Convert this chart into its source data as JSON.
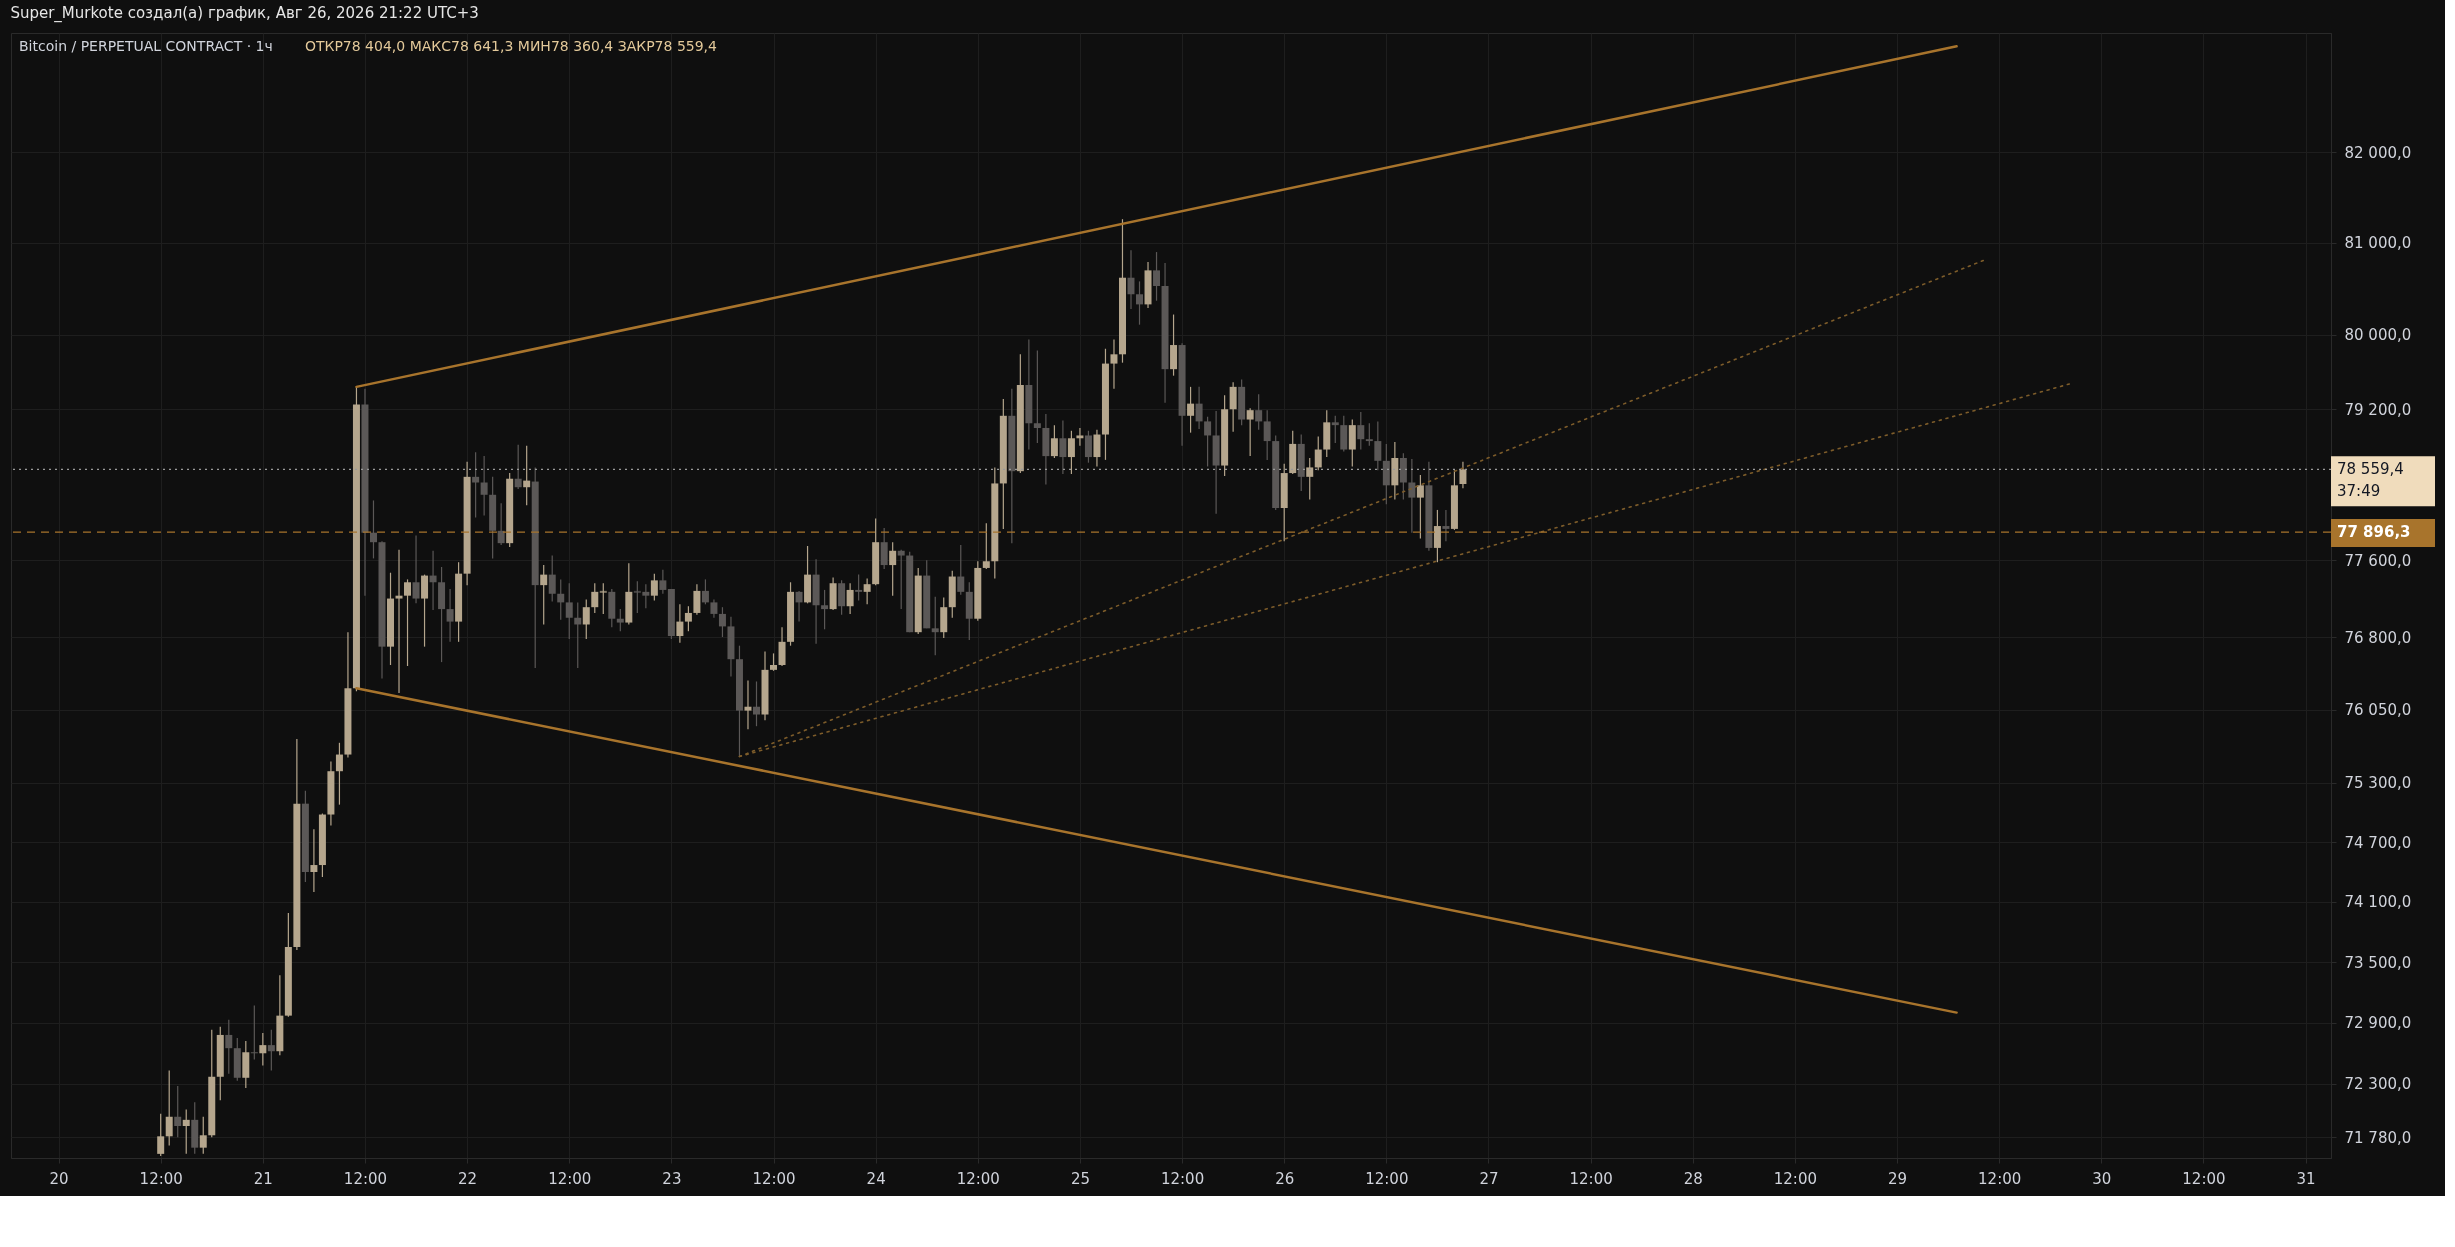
{
  "chart_data": {
    "type": "candlestick",
    "title": "Super_Murkote создал(а) график, Авг 26, 2026 21:22 UTC+3",
    "subtitle": "Bitcoin / PERPETUAL CONTRACT · 1ч",
    "annotations": [
      "ОТКР78 404,0  МАКС78 641,3  МИН78 360,4  ЗАКР78 559,4"
    ],
    "x": [
      "2026-08-20T12:00",
      "2026-08-20T13:00",
      "2026-08-20T14:00",
      "2026-08-20T15:00",
      "2026-08-20T16:00",
      "2026-08-20T17:00",
      "2026-08-20T18:00",
      "2026-08-20T19:00",
      "2026-08-20T20:00",
      "2026-08-20T21:00",
      "2026-08-20T22:00",
      "2026-08-20T23:00",
      "2026-08-21T00:00",
      "2026-08-21T01:00",
      "2026-08-21T02:00",
      "2026-08-21T03:00",
      "2026-08-21T04:00",
      "2026-08-21T05:00",
      "2026-08-21T06:00",
      "2026-08-21T07:00",
      "2026-08-21T08:00",
      "2026-08-21T09:00",
      "2026-08-21T10:00",
      "2026-08-21T11:00",
      "2026-08-21T12:00",
      "2026-08-21T13:00",
      "2026-08-21T14:00",
      "2026-08-21T15:00",
      "2026-08-21T16:00",
      "2026-08-21T17:00",
      "2026-08-21T18:00",
      "2026-08-21T19:00",
      "2026-08-21T20:00",
      "2026-08-21T21:00",
      "2026-08-21T22:00",
      "2026-08-21T23:00",
      "2026-08-22T00:00",
      "2026-08-22T01:00",
      "2026-08-22T02:00",
      "2026-08-22T03:00",
      "2026-08-22T04:00",
      "2026-08-22T05:00",
      "2026-08-22T06:00",
      "2026-08-22T07:00",
      "2026-08-22T08:00",
      "2026-08-22T09:00",
      "2026-08-22T10:00",
      "2026-08-22T11:00",
      "2026-08-22T12:00",
      "2026-08-22T13:00",
      "2026-08-22T14:00",
      "2026-08-22T15:00",
      "2026-08-22T16:00",
      "2026-08-22T17:00",
      "2026-08-22T18:00",
      "2026-08-22T19:00",
      "2026-08-22T20:00",
      "2026-08-22T21:00",
      "2026-08-22T22:00",
      "2026-08-22T23:00",
      "2026-08-23T00:00",
      "2026-08-23T01:00",
      "2026-08-23T02:00",
      "2026-08-23T03:00",
      "2026-08-23T04:00",
      "2026-08-23T05:00",
      "2026-08-23T06:00",
      "2026-08-23T07:00",
      "2026-08-23T08:00",
      "2026-08-23T09:00",
      "2026-08-23T10:00",
      "2026-08-23T11:00",
      "2026-08-23T12:00",
      "2026-08-23T13:00",
      "2026-08-23T14:00",
      "2026-08-23T15:00",
      "2026-08-23T16:00",
      "2026-08-23T17:00",
      "2026-08-23T18:00",
      "2026-08-23T19:00",
      "2026-08-23T20:00",
      "2026-08-23T21:00",
      "2026-08-23T22:00",
      "2026-08-23T23:00",
      "2026-08-24T00:00",
      "2026-08-24T01:00",
      "2026-08-24T02:00",
      "2026-08-24T03:00",
      "2026-08-24T04:00",
      "2026-08-24T05:00",
      "2026-08-24T06:00",
      "2026-08-24T07:00",
      "2026-08-24T08:00",
      "2026-08-24T09:00",
      "2026-08-24T10:00",
      "2026-08-24T11:00",
      "2026-08-24T12:00",
      "2026-08-24T13:00",
      "2026-08-24T14:00",
      "2026-08-24T15:00",
      "2026-08-24T16:00",
      "2026-08-24T17:00",
      "2026-08-24T18:00",
      "2026-08-24T19:00",
      "2026-08-24T20:00",
      "2026-08-24T21:00",
      "2026-08-24T22:00",
      "2026-08-24T23:00",
      "2026-08-25T00:00",
      "2026-08-25T01:00",
      "2026-08-25T02:00",
      "2026-08-25T03:00",
      "2026-08-25T04:00",
      "2026-08-25T05:00",
      "2026-08-25T06:00",
      "2026-08-25T07:00",
      "2026-08-25T08:00",
      "2026-08-25T09:00",
      "2026-08-25T10:00",
      "2026-08-25T11:00",
      "2026-08-25T12:00",
      "2026-08-25T13:00",
      "2026-08-25T14:00",
      "2026-08-25T15:00",
      "2026-08-25T16:00",
      "2026-08-25T17:00",
      "2026-08-25T18:00",
      "2026-08-25T19:00",
      "2026-08-25T20:00",
      "2026-08-25T21:00",
      "2026-08-25T22:00",
      "2026-08-25T23:00",
      "2026-08-26T00:00",
      "2026-08-26T01:00",
      "2026-08-26T02:00",
      "2026-08-26T03:00",
      "2026-08-26T04:00",
      "2026-08-26T05:00",
      "2026-08-26T06:00",
      "2026-08-26T07:00",
      "2026-08-26T08:00",
      "2026-08-26T09:00",
      "2026-08-26T10:00",
      "2026-08-26T11:00",
      "2026-08-26T12:00",
      "2026-08-26T13:00",
      "2026-08-26T14:00",
      "2026-08-26T15:00",
      "2026-08-26T16:00",
      "2026-08-26T17:00",
      "2026-08-26T18:00",
      "2026-08-26T19:00",
      "2026-08-26T20:00",
      "2026-08-26T21:00"
    ],
    "ohlc": [
      [
        71620,
        72010,
        71600,
        71790
      ],
      [
        71790,
        72430,
        71700,
        71980
      ],
      [
        71980,
        72280,
        71780,
        71890
      ],
      [
        71890,
        72050,
        71620,
        71950
      ],
      [
        71950,
        72120,
        71620,
        71680
      ],
      [
        71680,
        71980,
        71620,
        71800
      ],
      [
        71800,
        72830,
        71780,
        72370
      ],
      [
        72370,
        72860,
        72140,
        72780
      ],
      [
        72780,
        72930,
        72400,
        72650
      ],
      [
        72650,
        72750,
        72330,
        72360
      ],
      [
        72360,
        72720,
        72260,
        72610
      ],
      [
        72610,
        73070,
        72540,
        72600
      ],
      [
        72600,
        72800,
        72480,
        72680
      ],
      [
        72680,
        72830,
        72430,
        72620
      ],
      [
        72620,
        73370,
        72580,
        72970
      ],
      [
        72970,
        73990,
        72960,
        73650
      ],
      [
        73650,
        75750,
        73620,
        75090
      ],
      [
        75090,
        75220,
        74300,
        74400
      ],
      [
        74400,
        74830,
        74200,
        74470
      ],
      [
        74470,
        74990,
        74350,
        74980
      ],
      [
        74980,
        75520,
        74870,
        75420
      ],
      [
        75420,
        75710,
        75080,
        75590
      ],
      [
        75590,
        76850,
        75560,
        76270
      ],
      [
        76270,
        79440,
        76240,
        79250
      ],
      [
        79250,
        79420,
        77230,
        77890
      ],
      [
        77890,
        78230,
        77620,
        77790
      ],
      [
        77790,
        77800,
        76370,
        76700
      ],
      [
        76700,
        77470,
        76510,
        77200
      ],
      [
        77200,
        77710,
        76220,
        77230
      ],
      [
        77230,
        77400,
        76500,
        77370
      ],
      [
        77370,
        77860,
        77150,
        77200
      ],
      [
        77200,
        77450,
        76700,
        77440
      ],
      [
        77440,
        77700,
        77080,
        77370
      ],
      [
        77370,
        77530,
        76540,
        77090
      ],
      [
        77090,
        77300,
        76750,
        76960
      ],
      [
        76960,
        77580,
        76750,
        77460
      ],
      [
        77460,
        78640,
        77340,
        78480
      ],
      [
        78480,
        78740,
        78050,
        78420
      ],
      [
        78420,
        78700,
        78070,
        78290
      ],
      [
        78290,
        78480,
        77620,
        77910
      ],
      [
        77910,
        78200,
        77760,
        77780
      ],
      [
        77780,
        78520,
        77740,
        78460
      ],
      [
        78460,
        78820,
        78350,
        78370
      ],
      [
        78370,
        78810,
        78180,
        78440
      ],
      [
        78430,
        78580,
        76480,
        77340
      ],
      [
        77340,
        77550,
        76930,
        77450
      ],
      [
        77450,
        77650,
        77170,
        77250
      ],
      [
        77250,
        77400,
        76980,
        77160
      ],
      [
        77160,
        77360,
        76780,
        77000
      ],
      [
        77000,
        77160,
        76480,
        76930
      ],
      [
        76930,
        77190,
        76780,
        77110
      ],
      [
        77110,
        77360,
        77050,
        77270
      ],
      [
        77270,
        77360,
        77040,
        77270
      ],
      [
        77270,
        77300,
        76900,
        76990
      ],
      [
        76990,
        77090,
        76860,
        76950
      ],
      [
        76950,
        77570,
        76930,
        77270
      ],
      [
        77270,
        77380,
        77050,
        77270
      ],
      [
        77270,
        77350,
        77100,
        77230
      ],
      [
        77230,
        77460,
        77180,
        77390
      ],
      [
        77390,
        77500,
        77250,
        77290
      ],
      [
        77300,
        77300,
        76780,
        76810
      ],
      [
        76810,
        77140,
        76740,
        76960
      ],
      [
        76960,
        77120,
        76860,
        77050
      ],
      [
        77050,
        77350,
        77030,
        77280
      ],
      [
        77280,
        77400,
        77140,
        77160
      ],
      [
        77160,
        77190,
        77000,
        77040
      ],
      [
        77040,
        77110,
        76800,
        76910
      ],
      [
        76910,
        77010,
        76390,
        76570
      ],
      [
        76570,
        76710,
        75570,
        76040
      ],
      [
        76040,
        76350,
        75850,
        76080
      ],
      [
        76080,
        76340,
        75880,
        76000
      ],
      [
        76000,
        76650,
        75940,
        76460
      ],
      [
        76460,
        76630,
        76450,
        76510
      ],
      [
        76510,
        76900,
        76500,
        76750
      ],
      [
        76750,
        77370,
        76710,
        77270
      ],
      [
        77270,
        77280,
        76960,
        77160
      ],
      [
        77160,
        77750,
        77150,
        77450
      ],
      [
        77450,
        77610,
        76730,
        77130
      ],
      [
        77130,
        77290,
        76880,
        77090
      ],
      [
        77090,
        77420,
        77080,
        77360
      ],
      [
        77360,
        77390,
        77030,
        77120
      ],
      [
        77120,
        77360,
        77040,
        77290
      ],
      [
        77290,
        77450,
        77180,
        77270
      ],
      [
        77270,
        77410,
        77140,
        77350
      ],
      [
        77350,
        78040,
        77340,
        77790
      ],
      [
        77790,
        77940,
        77510,
        77550
      ],
      [
        77550,
        77790,
        77230,
        77700
      ],
      [
        77700,
        77710,
        77090,
        77650
      ],
      [
        77650,
        77690,
        76850,
        76850
      ],
      [
        76850,
        77520,
        76830,
        77440
      ],
      [
        77440,
        77600,
        76890,
        76890
      ],
      [
        76890,
        77220,
        76610,
        76850
      ],
      [
        76850,
        77210,
        76790,
        77110
      ],
      [
        77110,
        77490,
        77000,
        77430
      ],
      [
        77430,
        77760,
        77240,
        77270
      ],
      [
        77270,
        77370,
        76770,
        76990
      ],
      [
        76990,
        77590,
        76970,
        77520
      ],
      [
        77520,
        77990,
        77510,
        77590
      ],
      [
        77590,
        78580,
        77410,
        78410
      ],
      [
        78410,
        79310,
        77930,
        79130
      ],
      [
        79130,
        79420,
        77780,
        78540
      ],
      [
        78540,
        79790,
        78520,
        79460
      ],
      [
        79460,
        79950,
        78770,
        79050
      ],
      [
        79050,
        79830,
        78840,
        79000
      ],
      [
        79000,
        79150,
        78400,
        78700
      ],
      [
        78700,
        79030,
        78680,
        78890
      ],
      [
        78890,
        79080,
        78510,
        78690
      ],
      [
        78690,
        78970,
        78510,
        78890
      ],
      [
        78890,
        79000,
        78810,
        78920
      ],
      [
        78920,
        78970,
        78630,
        78690
      ],
      [
        78690,
        78980,
        78590,
        78930
      ],
      [
        78930,
        79850,
        78660,
        79690
      ],
      [
        79690,
        79950,
        79420,
        79790
      ],
      [
        79790,
        81260,
        79700,
        80620
      ],
      [
        80620,
        80920,
        80280,
        80440
      ],
      [
        80440,
        80580,
        80110,
        80330
      ],
      [
        80330,
        80790,
        80290,
        80700
      ],
      [
        80700,
        80900,
        80370,
        80530
      ],
      [
        80530,
        80780,
        79270,
        79630
      ],
      [
        79630,
        80220,
        79560,
        79890
      ],
      [
        79890,
        79910,
        78810,
        79130
      ],
      [
        79130,
        79440,
        78950,
        79260
      ],
      [
        79260,
        79440,
        78990,
        79070
      ],
      [
        79070,
        79120,
        78590,
        78920
      ],
      [
        78920,
        79180,
        78090,
        78600
      ],
      [
        78600,
        79350,
        78490,
        79200
      ],
      [
        79200,
        79490,
        78960,
        79440
      ],
      [
        79440,
        79520,
        79030,
        79090
      ],
      [
        79090,
        79210,
        78700,
        79190
      ],
      [
        79190,
        79360,
        78980,
        79070
      ],
      [
        79070,
        79190,
        78660,
        78860
      ],
      [
        78860,
        78920,
        78130,
        78150
      ],
      [
        78150,
        78620,
        77800,
        78520
      ],
      [
        78520,
        78970,
        78510,
        78830
      ],
      [
        78830,
        78930,
        78330,
        78480
      ],
      [
        78480,
        78680,
        78240,
        78580
      ],
      [
        78580,
        78910,
        78550,
        78770
      ],
      [
        78770,
        79190,
        78690,
        79060
      ],
      [
        79060,
        79130,
        78840,
        79030
      ],
      [
        79030,
        79130,
        78750,
        78770
      ],
      [
        78770,
        79090,
        78590,
        79030
      ],
      [
        79030,
        79170,
        78770,
        78880
      ],
      [
        78880,
        79050,
        78810,
        78860
      ],
      [
        78860,
        79070,
        78550,
        78650
      ],
      [
        78650,
        78830,
        78190,
        78390
      ],
      [
        78390,
        78850,
        78240,
        78680
      ],
      [
        78680,
        78730,
        78240,
        78420
      ],
      [
        78420,
        78670,
        77890,
        78260
      ],
      [
        78260,
        78500,
        77830,
        78390
      ],
      [
        78390,
        78640,
        77700,
        77730
      ],
      [
        77730,
        78130,
        77580,
        77960
      ],
      [
        77960,
        78130,
        77800,
        77930
      ],
      [
        77930,
        78550,
        77920,
        78390
      ],
      [
        78404,
        78641.3,
        78360.4,
        78559.4
      ]
    ],
    "colors": [
      "#b5a68d",
      "#b5a68d",
      "#5b5857",
      "#b5a68d",
      "#5b5857",
      "#b5a68d",
      "#b5a68d",
      "#b5a68d",
      "#5b5857",
      "#5b5857",
      "#b5a68d",
      "#5b5857",
      "#b5a68d",
      "#5b5857",
      "#b5a68d",
      "#b5a68d",
      "#b5a68d",
      "#5b5857",
      "#b5a68d",
      "#b5a68d",
      "#b5a68d",
      "#b5a68d",
      "#b5a68d",
      "#b5a68d",
      "#5b5857",
      "#5b5857",
      "#5b5857",
      "#b5a68d",
      "#b5a68d",
      "#b5a68d",
      "#5b5857",
      "#b5a68d",
      "#5b5857",
      "#5b5857",
      "#5b5857",
      "#b5a68d",
      "#b5a68d",
      "#5b5857",
      "#5b5857",
      "#5b5857",
      "#5b5857",
      "#b5a68d",
      "#5b5857",
      "#b5a68d",
      "#5b5857",
      "#b5a68d",
      "#5b5857",
      "#5b5857",
      "#5b5857",
      "#5b5857",
      "#b5a68d",
      "#b5a68d",
      "#b5a68d",
      "#5b5857",
      "#5b5857",
      "#b5a68d",
      "#5b5857",
      "#5b5857",
      "#b5a68d",
      "#5b5857",
      "#5b5857",
      "#b5a68d",
      "#b5a68d",
      "#b5a68d",
      "#5b5857",
      "#5b5857",
      "#5b5857",
      "#5b5857",
      "#5b5857",
      "#b5a68d",
      "#5b5857",
      "#b5a68d",
      "#b5a68d",
      "#b5a68d",
      "#b5a68d",
      "#5b5857",
      "#b5a68d",
      "#5b5857",
      "#5b5857",
      "#b5a68d",
      "#5b5857",
      "#b5a68d",
      "#5b5857",
      "#b5a68d",
      "#b5a68d",
      "#5b5857",
      "#b5a68d",
      "#5b5857",
      "#5b5857",
      "#b5a68d",
      "#5b5857",
      "#5b5857",
      "#b5a68d",
      "#b5a68d",
      "#5b5857",
      "#5b5857",
      "#b5a68d",
      "#b5a68d",
      "#b5a68d",
      "#b5a68d",
      "#5b5857",
      "#b5a68d",
      "#5b5857",
      "#5b5857",
      "#5b5857",
      "#b5a68d",
      "#5b5857",
      "#b5a68d",
      "#b5a68d",
      "#5b5857",
      "#b5a68d",
      "#b5a68d",
      "#b5a68d",
      "#b5a68d",
      "#5b5857",
      "#5b5857",
      "#b5a68d",
      "#5b5857",
      "#5b5857",
      "#b5a68d",
      "#5b5857",
      "#b5a68d",
      "#5b5857",
      "#5b5857",
      "#5b5857",
      "#b5a68d",
      "#b5a68d",
      "#5b5857",
      "#b5a68d",
      "#5b5857",
      "#5b5857",
      "#5b5857",
      "#b5a68d",
      "#b5a68d",
      "#5b5857",
      "#b5a68d",
      "#b5a68d",
      "#b5a68d",
      "#5b5857",
      "#5b5857",
      "#b5a68d",
      "#5b5857",
      "#5b5857",
      "#5b5857",
      "#5b5857",
      "#b5a68d",
      "#5b5857",
      "#5b5857",
      "#b5a68d",
      "#5b5857",
      "#b5a68d",
      "#5b5857",
      "#b5a68d",
      "#b5a68d"
    ],
    "series": [
      {
        "type": "line",
        "color": "#a8742c",
        "line_style": "solid",
        "x": [
          "2026-08-21T11:00",
          "2026-08-29T07:00"
        ],
        "values": [
          79440,
          83180
        ]
      },
      {
        "type": "line",
        "color": "#a8742c",
        "line_style": "solid",
        "x": [
          "2026-08-21T11:00",
          "2026-08-29T07:00"
        ],
        "values": [
          76270,
          73000
        ]
      },
      {
        "type": "line",
        "color": "#7d5c2a",
        "line_style": "dotted",
        "x": [
          "2026-08-23T08:00",
          "2026-08-29T10:12"
        ],
        "values": [
          75570,
          80810
        ]
      },
      {
        "type": "line",
        "color": "#7d5c2a",
        "line_style": "dotted",
        "x": [
          "2026-08-23T08:00",
          "2026-08-29T20:36"
        ],
        "values": [
          75570,
          79480
        ]
      }
    ],
    "ref_lines": [
      {
        "axis": "y",
        "value": 78559.4,
        "label": "78 559,4\n37:49",
        "color": "#9a9a9a",
        "line_style": "dotted"
      },
      {
        "axis": "y",
        "value": 77896.3,
        "label": "77 896,3",
        "color": "#a8742c",
        "line_style": "dashed"
      }
    ],
    "xlim": [
      "2026-08-19T19:00",
      "2026-08-31T02:24"
    ],
    "xticks": [
      {
        "value": "2026-08-20",
        "label": "20"
      },
      {
        "value": "2026-08-20T12:00",
        "label": "12:00"
      },
      {
        "value": "2026-08-21",
        "label": "21"
      },
      {
        "value": "2026-08-21T12:00",
        "label": "12:00"
      },
      {
        "value": "2026-08-22",
        "label": "22"
      },
      {
        "value": "2026-08-22T12:00",
        "label": "12:00"
      },
      {
        "value": "2026-08-23",
        "label": "23"
      },
      {
        "value": "2026-08-23T12:00",
        "label": "12:00"
      },
      {
        "value": "2026-08-24",
        "label": "24"
      },
      {
        "value": "2026-08-24T12:00",
        "label": "12:00"
      },
      {
        "value": "2026-08-25",
        "label": "25"
      },
      {
        "value": "2026-08-25T12:00",
        "label": "12:00"
      },
      {
        "value": "2026-08-26",
        "label": "26"
      },
      {
        "value": "2026-08-26T12:00",
        "label": "12:00"
      },
      {
        "value": "2026-08-27",
        "label": "27"
      },
      {
        "value": "2026-08-27T12:00",
        "label": "12:00"
      },
      {
        "value": "2026-08-28",
        "label": "28"
      },
      {
        "value": "2026-08-28T12:00",
        "label": "12:00"
      },
      {
        "value": "2026-08-29",
        "label": "29"
      },
      {
        "value": "2026-08-29T12:00",
        "label": "12:00"
      },
      {
        "value": "2026-08-30",
        "label": "30"
      },
      {
        "value": "2026-08-30T12:00",
        "label": "12:00"
      },
      {
        "value": "2026-08-31",
        "label": "31"
      }
    ],
    "ylim": [
      71580,
      83330
    ],
    "yticks": [
      {
        "value": 71780,
        "label": "71 780,0"
      },
      {
        "value": 72300,
        "label": "72 300,0"
      },
      {
        "value": 72900,
        "label": "72 900,0"
      },
      {
        "value": 73500,
        "label": "73 500,0"
      },
      {
        "value": 74100,
        "label": "74 100,0"
      },
      {
        "value": 74700,
        "label": "74 700,0"
      },
      {
        "value": 75300,
        "label": "75 300,0"
      },
      {
        "value": 76050,
        "label": "76 050,0"
      },
      {
        "value": 76800,
        "label": "76 800,0"
      },
      {
        "value": 77600,
        "label": "77 600,0"
      },
      {
        "value": 79200,
        "label": "79 200,0"
      },
      {
        "value": 80000,
        "label": "80 000,0"
      },
      {
        "value": 81000,
        "label": "81 000,0"
      },
      {
        "value": 82000,
        "label": "82 000,0"
      }
    ],
    "log": "y",
    "grid": true
  }
}
